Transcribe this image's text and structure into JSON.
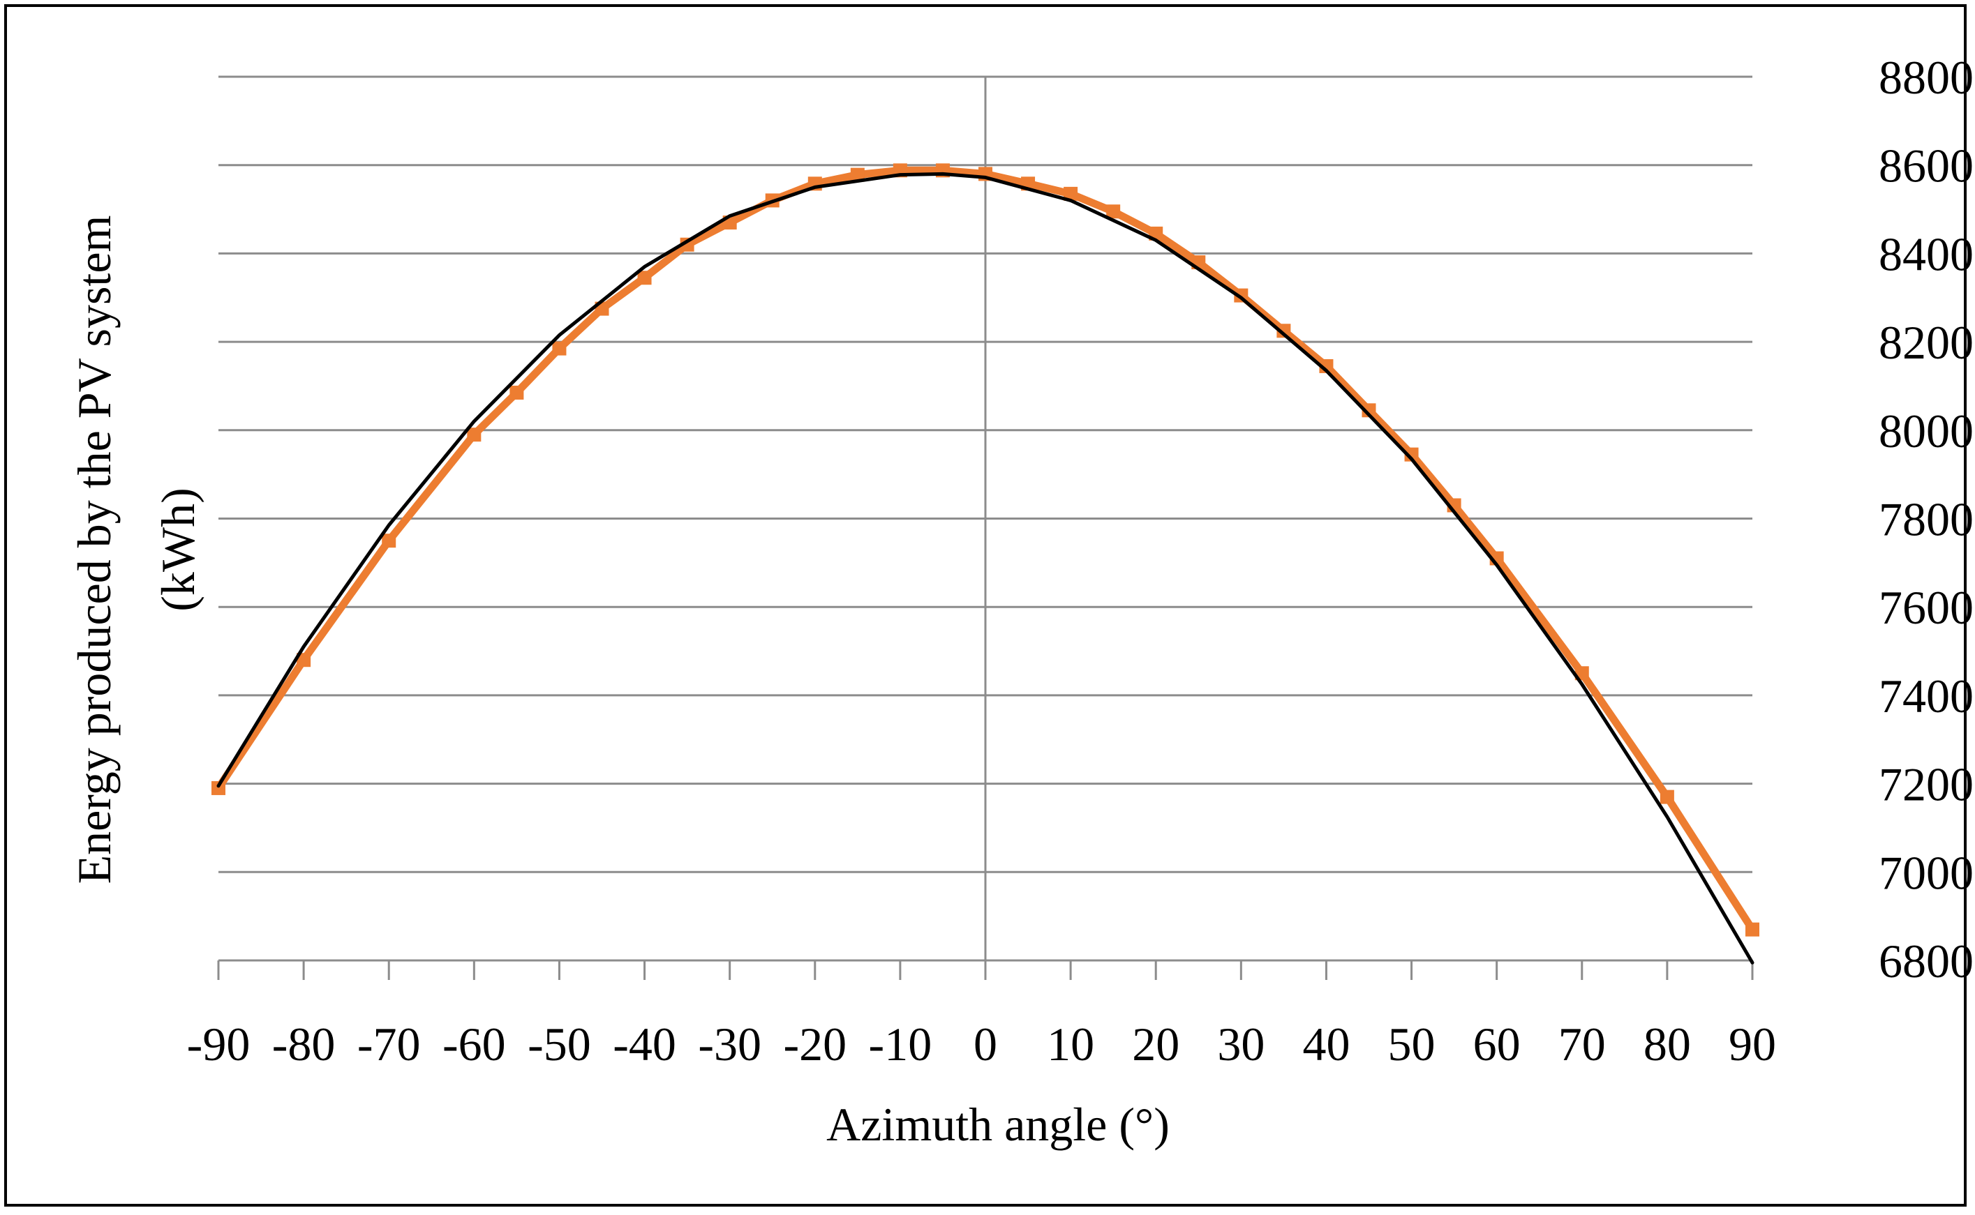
{
  "chart_data": {
    "type": "line",
    "title": "",
    "xlabel": "Azimuth angle (°)",
    "ylabel_line1": "Energy produced by the PV system",
    "ylabel_line2": "(kWh)",
    "xlim": [
      -90,
      90
    ],
    "ylim": [
      6800,
      8800
    ],
    "x_ticks": [
      -90,
      -80,
      -70,
      -60,
      -50,
      -40,
      -30,
      -20,
      -10,
      0,
      10,
      20,
      30,
      40,
      50,
      60,
      70,
      80,
      90
    ],
    "y_ticks": [
      6800,
      7000,
      7200,
      7400,
      7600,
      7800,
      8000,
      8200,
      8400,
      8600,
      8800
    ],
    "y_axis_position": "right",
    "grid": "horizontal",
    "legend": "none",
    "series": [
      {
        "color": "#ED7D31",
        "marker": "square",
        "x": [
          -90,
          -80,
          -70,
          -60,
          -55,
          -50,
          -45,
          -40,
          -35,
          -30,
          -25,
          -20,
          -15,
          -10,
          -5,
          0,
          5,
          10,
          15,
          20,
          25,
          30,
          35,
          40,
          45,
          50,
          55,
          60,
          70,
          80,
          90
        ],
        "y": [
          7190,
          7480,
          7750,
          7990,
          8085,
          8185,
          8275,
          8345,
          8420,
          8470,
          8520,
          8558,
          8578,
          8588,
          8588,
          8580,
          8558,
          8535,
          8495,
          8445,
          8380,
          8305,
          8225,
          8145,
          8045,
          7945,
          7830,
          7710,
          7450,
          7170,
          6870
        ]
      },
      {
        "color": "#000000",
        "marker": "none",
        "fit": "quadratic",
        "x": [
          -90,
          -80,
          -70,
          -60,
          -50,
          -40,
          -30,
          -20,
          -10,
          -5,
          0,
          10,
          20,
          30,
          40,
          50,
          60,
          70,
          80,
          90
        ],
        "y": [
          7195,
          7510,
          7785,
          8020,
          8215,
          8370,
          8485,
          8550,
          8578,
          8580,
          8572,
          8520,
          8430,
          8300,
          8135,
          7935,
          7695,
          7425,
          7125,
          6795
        ]
      }
    ]
  }
}
